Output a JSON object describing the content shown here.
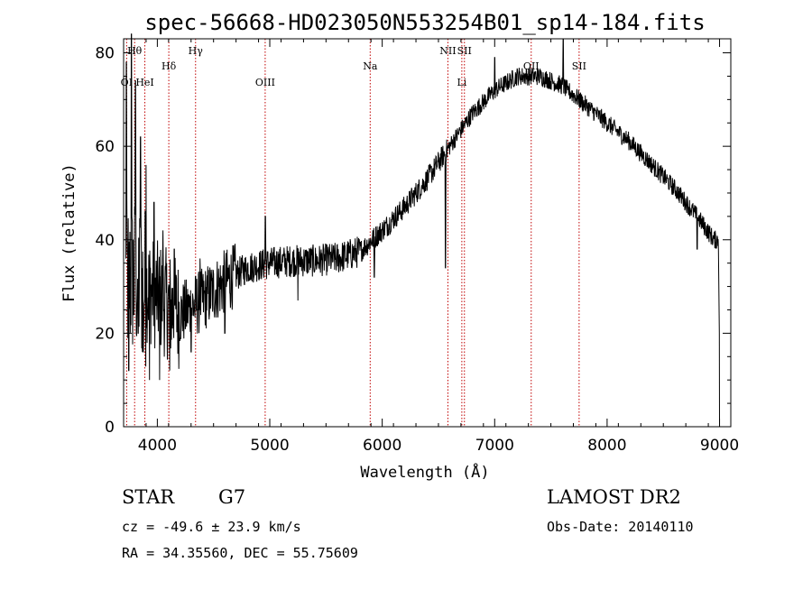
{
  "chart_data": {
    "type": "line",
    "title": "spec-56668-HD023050N553254B01_sp14-184.fits",
    "xlabel": "Wavelength (Å)",
    "ylabel": "Flux (relative)",
    "xlim": [
      3700,
      9100
    ],
    "ylim": [
      0,
      83
    ],
    "x_ticks": [
      {
        "value": 4000,
        "label": "4000"
      },
      {
        "value": 5000,
        "label": "5000"
      },
      {
        "value": 6000,
        "label": "6000"
      },
      {
        "value": 7000,
        "label": "7000"
      },
      {
        "value": 8000,
        "label": "8000"
      },
      {
        "value": 9000,
        "label": "9000"
      }
    ],
    "y_ticks": [
      {
        "value": 0,
        "label": "0"
      },
      {
        "value": 20,
        "label": "20"
      },
      {
        "value": 40,
        "label": "40"
      },
      {
        "value": 60,
        "label": "60"
      },
      {
        "value": 80,
        "label": "80"
      }
    ],
    "lines": [
      {
        "name": "OI",
        "wavelength": 3727,
        "tier": "low"
      },
      {
        "name": "Hθ",
        "wavelength": 3798,
        "tier": "top"
      },
      {
        "name": "HeI",
        "wavelength": 3889,
        "tier": "low"
      },
      {
        "name": "Hδ",
        "wavelength": 4102,
        "tier": "mid"
      },
      {
        "name": "Hγ",
        "wavelength": 4340,
        "tier": "top"
      },
      {
        "name": "OIII",
        "wavelength": 4959,
        "tier": "low"
      },
      {
        "name": "Na",
        "wavelength": 5893,
        "tier": "mid"
      },
      {
        "name": "NII",
        "wavelength": 6584,
        "tier": "top"
      },
      {
        "name": "Li",
        "wavelength": 6708,
        "tier": "low"
      },
      {
        "name": "SII",
        "wavelength": 6731,
        "tier": "top"
      },
      {
        "name": "OII",
        "wavelength": 7325,
        "tier": "mid"
      },
      {
        "name": "SII",
        "wavelength": 7751,
        "tier": "mid"
      }
    ],
    "series": [
      {
        "continuum": [
          [
            3700,
            30
          ],
          [
            3800,
            32
          ],
          [
            4000,
            28
          ],
          [
            4200,
            24
          ],
          [
            4400,
            27
          ],
          [
            4600,
            31
          ],
          [
            4800,
            34
          ],
          [
            5000,
            35
          ],
          [
            5200,
            35.5
          ],
          [
            5400,
            35.5
          ],
          [
            5600,
            36
          ],
          [
            5800,
            37.5
          ],
          [
            6000,
            42
          ],
          [
            6200,
            47
          ],
          [
            6400,
            53
          ],
          [
            6600,
            60
          ],
          [
            6800,
            67
          ],
          [
            7000,
            72
          ],
          [
            7200,
            75
          ],
          [
            7400,
            75
          ],
          [
            7600,
            73
          ],
          [
            7800,
            69
          ],
          [
            8000,
            65
          ],
          [
            8200,
            61
          ],
          [
            8400,
            56
          ],
          [
            8600,
            51
          ],
          [
            8800,
            45
          ],
          [
            8950,
            40
          ]
        ],
        "features": [
          {
            "x": 3725,
            "y": 78
          },
          {
            "x": 3745,
            "y": 12
          },
          {
            "x": 3770,
            "y": 84
          },
          {
            "x": 3790,
            "y": 24
          },
          {
            "x": 3805,
            "y": 74
          },
          {
            "x": 3830,
            "y": 20
          },
          {
            "x": 3850,
            "y": 62
          },
          {
            "x": 3875,
            "y": 16
          },
          {
            "x": 3900,
            "y": 56
          },
          {
            "x": 3930,
            "y": 10
          },
          {
            "x": 3970,
            "y": 48
          },
          {
            "x": 4020,
            "y": 10
          },
          {
            "x": 4050,
            "y": 42
          },
          {
            "x": 4110,
            "y": 12
          },
          {
            "x": 4150,
            "y": 38
          },
          {
            "x": 4300,
            "y": 16
          },
          {
            "x": 4380,
            "y": 36
          },
          {
            "x": 4600,
            "y": 20
          },
          {
            "x": 4960,
            "y": 45
          },
          {
            "x": 5250,
            "y": 27
          },
          {
            "x": 5930,
            "y": 32
          },
          {
            "x": 6563,
            "y": 34
          },
          {
            "x": 7000,
            "y": 79
          },
          {
            "x": 7610,
            "y": 83
          },
          {
            "x": 7650,
            "y": 72
          },
          {
            "x": 8800,
            "y": 38
          }
        ],
        "end_drop": [
          [
            8990,
            38
          ],
          [
            8998,
            20
          ],
          [
            9000,
            0
          ]
        ]
      }
    ],
    "grid": false,
    "legend": "none"
  },
  "info": {
    "object_class": "STAR",
    "subclass": "G7",
    "redshift": "cz = -49.6 ± 23.9 km/s",
    "coords": "RA =  34.35560, DEC =  55.75609",
    "survey": "LAMOST DR2",
    "obs_date": "Obs-Date: 20140110"
  }
}
